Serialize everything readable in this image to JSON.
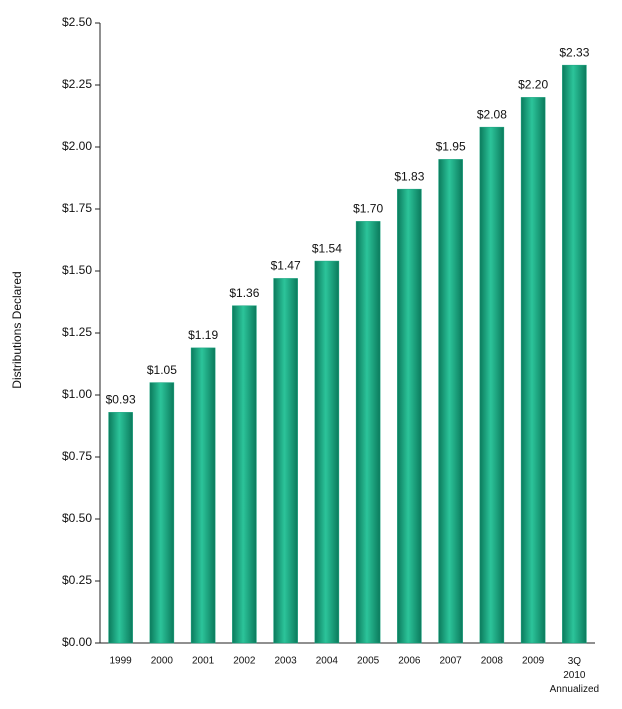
{
  "chart_data": {
    "type": "bar",
    "y_axis_label": "Distributions Declared",
    "categories": [
      "1999",
      "2000",
      "2001",
      "2002",
      "2003",
      "2004",
      "2005",
      "2006",
      "2007",
      "2008",
      "2009",
      "3Q\n2010\nAnnualized"
    ],
    "values": [
      0.93,
      1.05,
      1.19,
      1.36,
      1.47,
      1.54,
      1.7,
      1.83,
      1.95,
      2.08,
      2.2,
      2.33
    ],
    "value_labels": [
      "$0.93",
      "$1.05",
      "$1.19",
      "$1.36",
      "$1.47",
      "$1.54",
      "$1.70",
      "$1.83",
      "$1.95",
      "$2.08",
      "$2.20",
      "$2.33"
    ],
    "color": "#14a07c",
    "ylim": [
      0,
      2.5
    ],
    "yticks": [
      {
        "value": 0,
        "label": "$0.00"
      },
      {
        "value": 0.25,
        "label": "$0.25"
      },
      {
        "value": 0.5,
        "label": "$0.50"
      },
      {
        "value": 0.75,
        "label": "$0.75"
      },
      {
        "value": 1,
        "label": "$1.00"
      },
      {
        "value": 1.25,
        "label": "$1.25"
      },
      {
        "value": 1.5,
        "label": "$1.50"
      },
      {
        "value": 1.75,
        "label": "$1.75"
      },
      {
        "value": 2,
        "label": "$2.00"
      },
      {
        "value": 2.25,
        "label": "$2.25"
      },
      {
        "value": 2.5,
        "label": "$2.50"
      }
    ],
    "grid": false
  }
}
